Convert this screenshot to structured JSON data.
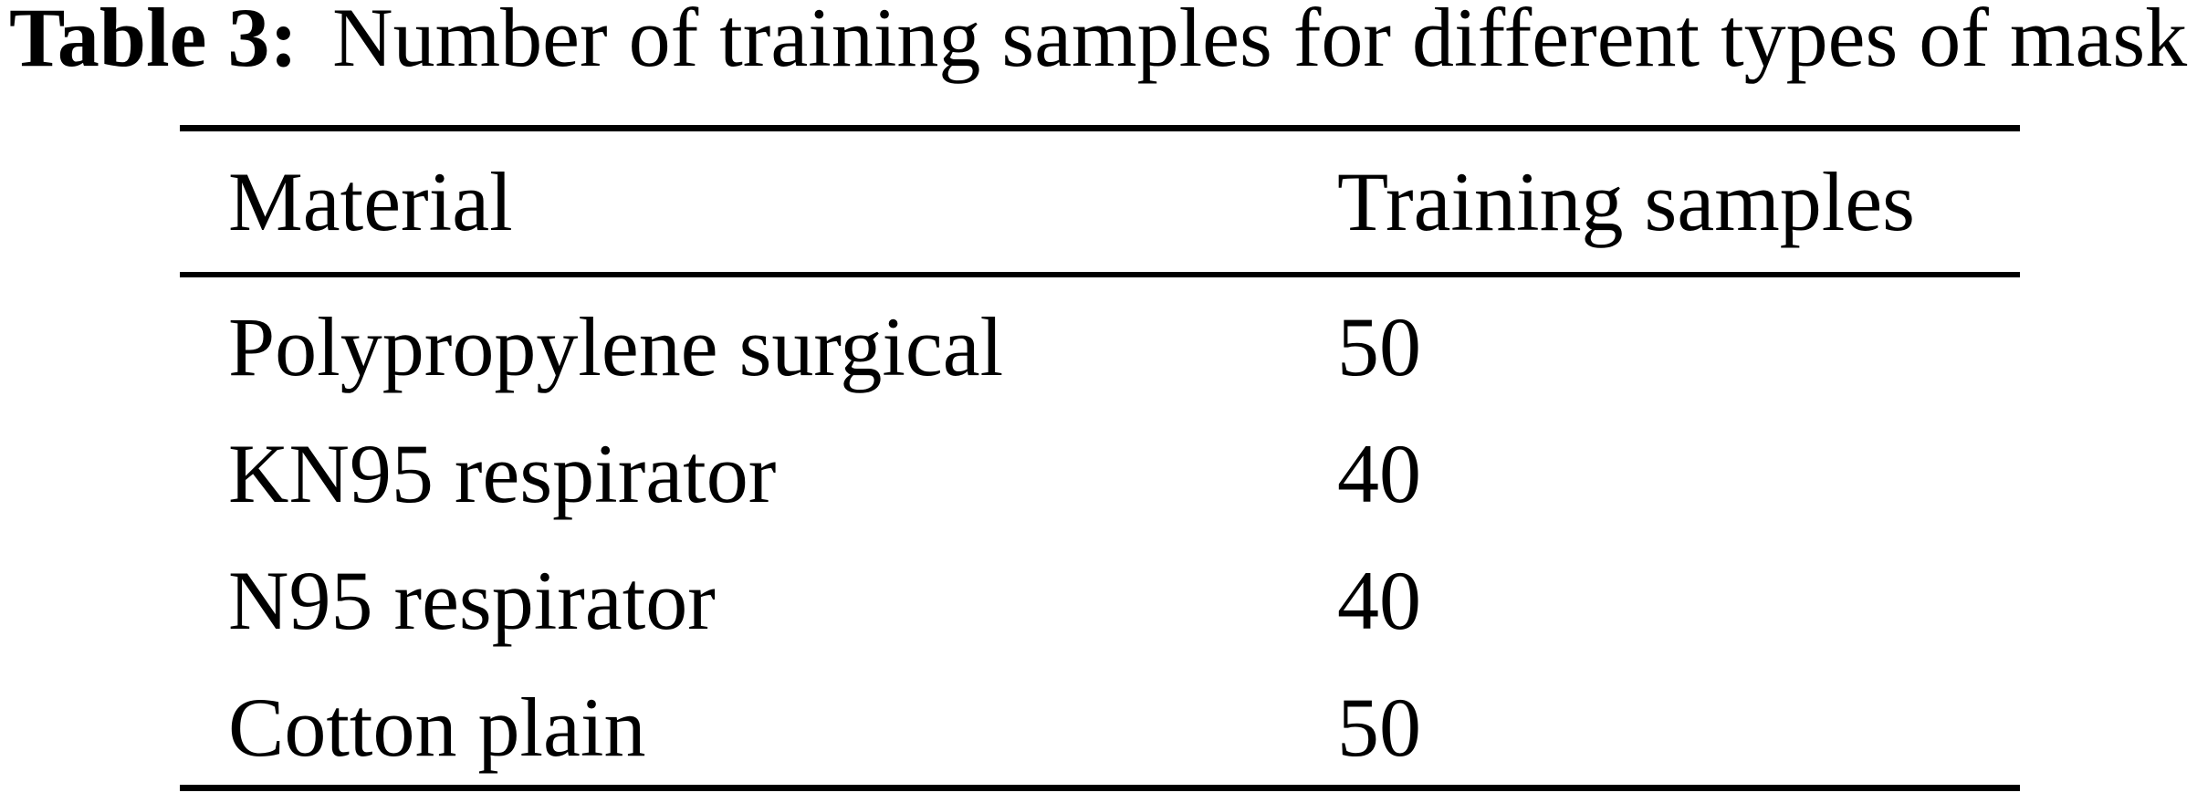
{
  "caption": {
    "label": "Table 3:",
    "text": "Number of training samples for different types of mask"
  },
  "table": {
    "headers": [
      "Material",
      "Training samples"
    ],
    "rows": [
      {
        "material": "Polypropylene surgical",
        "samples": "50"
      },
      {
        "material": "KN95 respirator",
        "samples": "40"
      },
      {
        "material": "N95 respirator",
        "samples": "40"
      },
      {
        "material": "Cotton plain",
        "samples": "50"
      }
    ]
  },
  "colors": {
    "text": "#000000",
    "background": "#ffffff",
    "rule": "#000000"
  },
  "chart_data": {
    "type": "table",
    "title": "Table 3: Number of training samples for different types of mask",
    "columns": [
      "Material",
      "Training samples"
    ],
    "rows": [
      [
        "Polypropylene surgical",
        50
      ],
      [
        "KN95 respirator",
        40
      ],
      [
        "N95 respirator",
        40
      ],
      [
        "Cotton plain",
        50
      ]
    ]
  }
}
